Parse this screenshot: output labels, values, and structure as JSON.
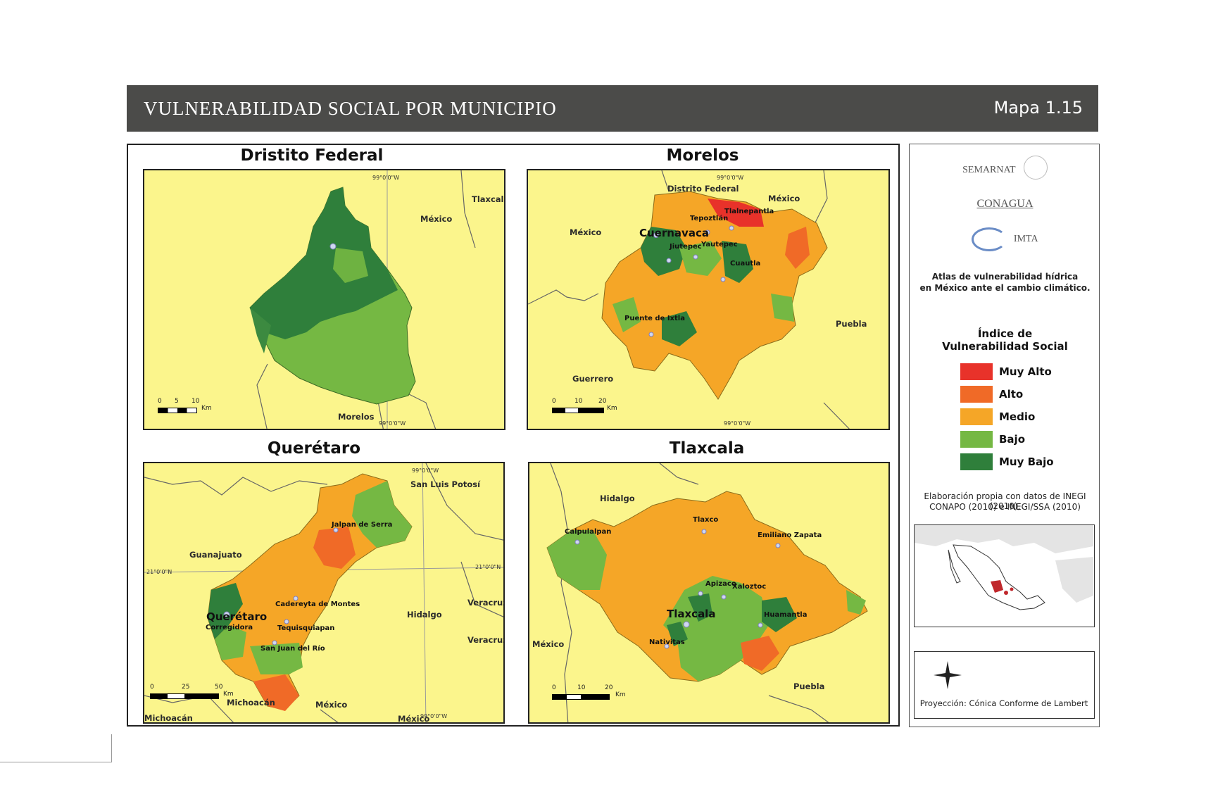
{
  "header": {
    "title": "VULNERABILIDAD SOCIAL POR MUNICIPIO",
    "map_number": "Mapa 1.15"
  },
  "colors": {
    "muy_alto": "#e8322a",
    "alto": "#f06a27",
    "medio": "#f5a627",
    "bajo": "#75b843",
    "muy_bajo": "#2f7f3b",
    "background": "#fbf58c"
  },
  "panels": {
    "df": {
      "title": "Dristito Federal",
      "labels": {
        "tlaxcala": "Tlaxcala",
        "mexico": "México",
        "morelos": "Morelos"
      },
      "coords": {
        "top": "99°0'0\"W",
        "bottom": "99°0'0\"W"
      },
      "scale": {
        "t0": "0",
        "t1": "5",
        "t2": "10",
        "unit": "Km"
      }
    },
    "morelos": {
      "title": "Morelos",
      "labels": {
        "df": "Distrito Federal",
        "mexico_ne": "México",
        "mexico_w": "México",
        "puebla": "Puebla",
        "guerrero": "Guerrero"
      },
      "cities": {
        "cuernavaca": "Cuernavaca",
        "tepoztlan": "Tepoztlán",
        "tlalnepantla": "Tlalnepantla",
        "jiutepec": "Jiutepec",
        "yautepec": "Yautepec",
        "cuautla": "Cuautla",
        "puente": "Puente de Ixtla"
      },
      "coords": {
        "top": "99°0'0\"W",
        "bottom": "99°0'0\"W"
      },
      "scale": {
        "t0": "0",
        "t1": "10",
        "t2": "20",
        "unit": "Km"
      }
    },
    "queretaro": {
      "title": "Querétaro",
      "labels": {
        "slp": "San Luis Potosí",
        "guanajuato": "Guanajuato",
        "hidalgo": "Hidalgo",
        "veracruz1": "Veracruz",
        "veracruz2": "Veracruz",
        "michoacan1": "Michoacán",
        "michoacan2": "Michoacán",
        "mexico1": "México",
        "mexico2": "México"
      },
      "cities": {
        "jalpan": "Jalpan de Serra",
        "cadereyta": "Cadereyta de Montes",
        "queretaro": "Querétaro",
        "corregidora": "Corregidora",
        "tequis": "Tequisquiapan",
        "sanjuan": "San Juan del Río"
      },
      "coords": {
        "top": "99°0'0\"W",
        "left": "21°0'0\"N",
        "right": "21°0'0\"N",
        "bottom": "99°0'0\"W"
      },
      "scale": {
        "t0": "0",
        "t1": "25",
        "t2": "50",
        "unit": "Km"
      }
    },
    "tlaxcala": {
      "title": "Tlaxcala",
      "labels": {
        "hidalgo": "Hidalgo",
        "mexico": "México",
        "puebla": "Puebla"
      },
      "cities": {
        "calpulalpan": "Calpulalpan",
        "tlaxco": "Tlaxco",
        "emiliano": "Emiliano Zapata",
        "apizaco": "Apizaco",
        "xaloztoc": "Xaloztoc",
        "tlaxcala": "Tlaxcala",
        "huamantla": "Huamantla",
        "nativitas": "Nativitas"
      },
      "scale": {
        "t0": "0",
        "t1": "10",
        "t2": "20",
        "unit": "Km"
      }
    }
  },
  "sidebar": {
    "logos": {
      "semarnat": "SEMARNAT",
      "conagua": "CONAGUA",
      "imta": "IMTA"
    },
    "atlas_line1": "Atlas de vulnerabilidad hídrica",
    "atlas_line2": "en México ante el cambio climático.",
    "legend_title_1": "Índice de",
    "legend_title_2": "Vulnerabilidad Social",
    "legend": [
      "Muy Alto",
      "Alto",
      "Medio",
      "Bajo",
      "Muy Bajo"
    ],
    "source_line1": "Elaboración propia con datos de INEGI (2010),",
    "source_line2": "CONAPO (2010) e INEGI/SSA (2010)",
    "projection": "Proyección: Cónica Conforme de Lambert"
  }
}
